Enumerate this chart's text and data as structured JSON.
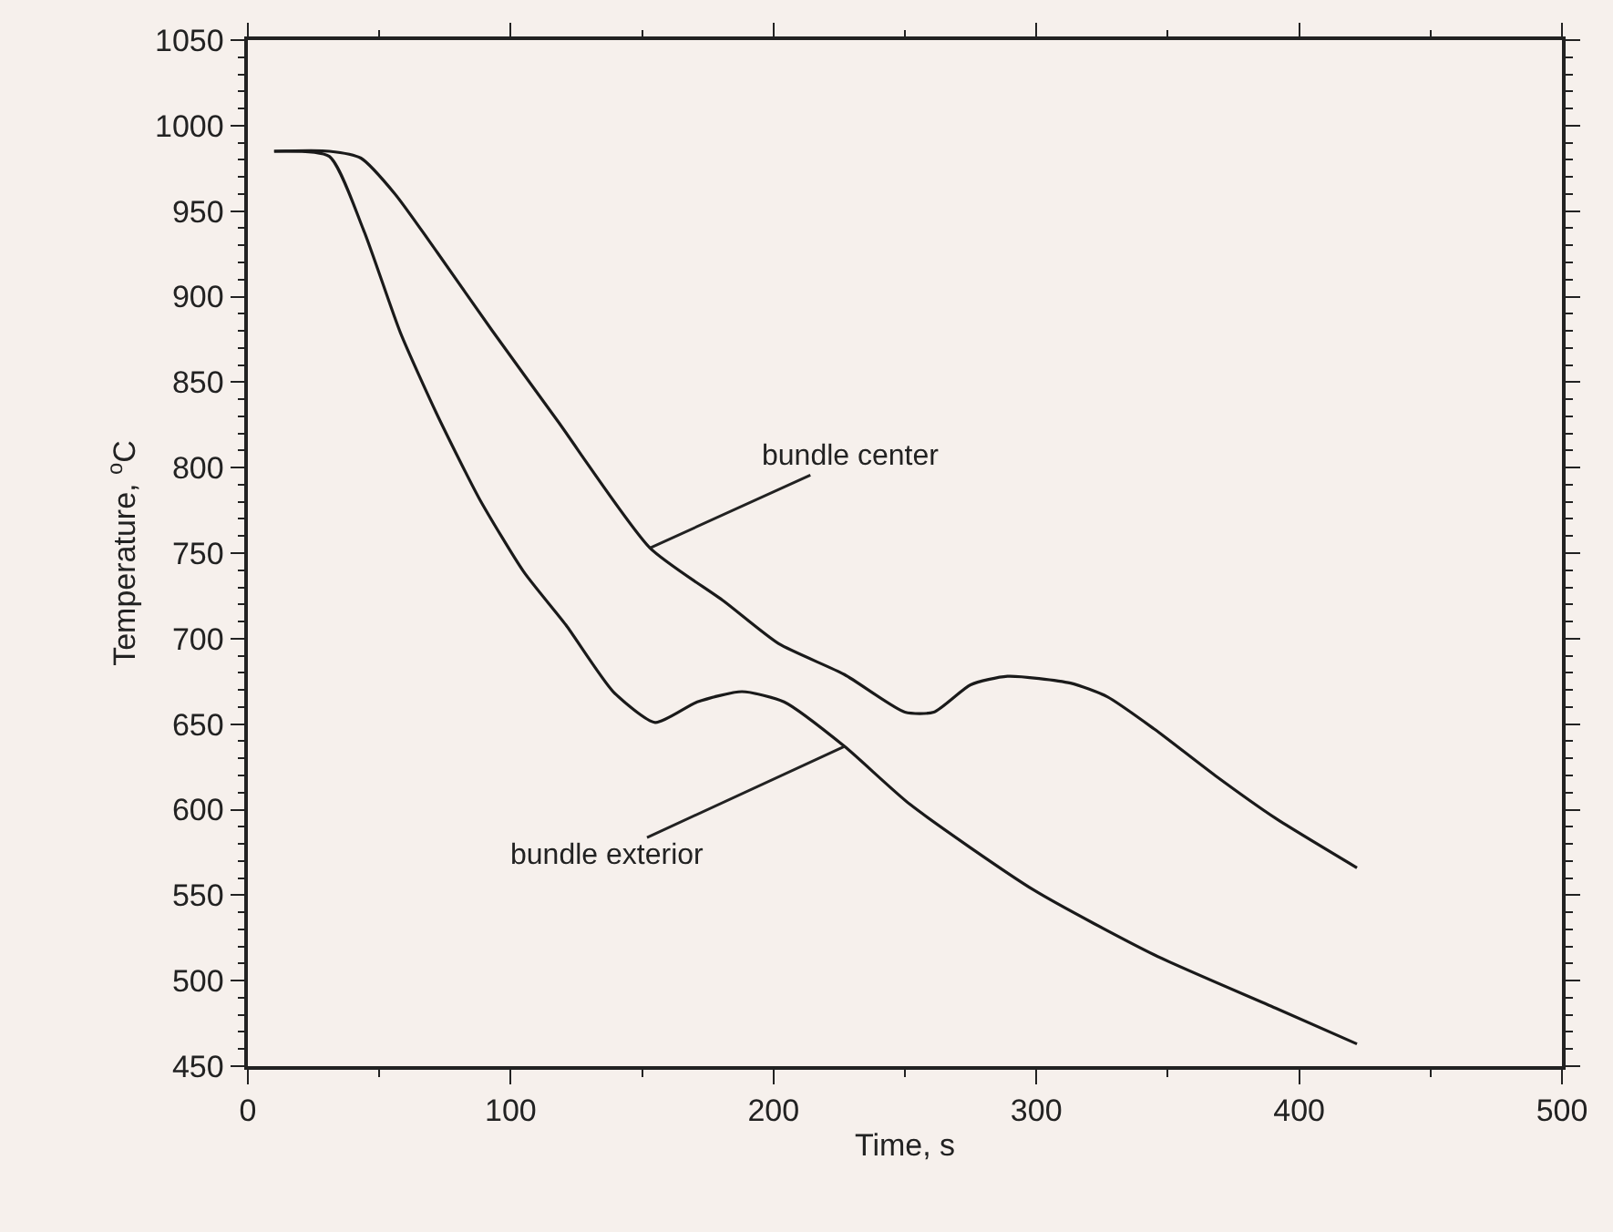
{
  "chart_data": {
    "type": "line",
    "xlabel": "Time, s",
    "ylabel": "Temperature, $^{o}$C",
    "xlim": [
      0,
      500
    ],
    "xticks": [
      0,
      100,
      200,
      300,
      400,
      500
    ],
    "ylim": [
      450,
      1050
    ],
    "yticks": [
      450,
      500,
      550,
      600,
      650,
      700,
      750,
      800,
      850,
      900,
      950,
      1000,
      1050
    ],
    "grid": false,
    "marker": "none",
    "line_style": "solid",
    "series": [
      {
        "color": "#1a1a1a",
        "x": [
          10,
          31,
          43,
          56,
          72,
          93,
          118,
          153,
          181,
          202,
          227,
          250,
          261,
          275,
          289,
          313,
          327,
          345,
          368,
          391,
          422
        ],
        "values": [
          985,
          985,
          981,
          960,
          926,
          880,
          827,
          753,
          722,
          697,
          679,
          657,
          657,
          673,
          678,
          674,
          666,
          647,
          620,
          595,
          566
        ]
      },
      {
        "color": "#1a1a1a",
        "x": [
          10,
          31,
          44,
          58,
          72,
          88,
          105,
          121,
          139,
          155,
          171,
          188,
          204,
          227,
          252,
          299,
          345,
          391,
          422
        ],
        "values": [
          985,
          982,
          939,
          879,
          831,
          782,
          739,
          708,
          669,
          651,
          663,
          669,
          663,
          637,
          603,
          553,
          515,
          484,
          463
        ]
      }
    ],
    "annotations": [
      {
        "text": "bundle center",
        "x": 153,
        "y": 753
      },
      {
        "text": "bundle exterior",
        "x": 227,
        "y": 637
      }
    ]
  }
}
